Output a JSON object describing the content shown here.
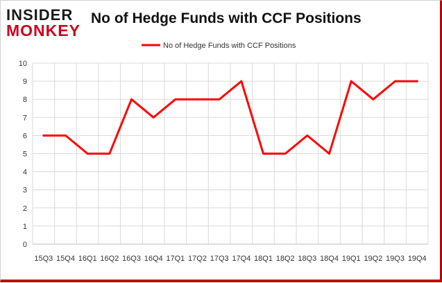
{
  "brand": {
    "line1": "INSIDER",
    "line2": "MONKEY"
  },
  "chart_data": {
    "type": "line",
    "title": "No of Hedge Funds with CCF Positions",
    "categories": [
      "15Q3",
      "15Q4",
      "16Q1",
      "16Q2",
      "16Q3",
      "16Q4",
      "17Q1",
      "17Q2",
      "17Q3",
      "17Q4",
      "18Q1",
      "18Q2",
      "18Q3",
      "18Q4",
      "19Q1",
      "19Q2",
      "19Q3",
      "19Q4"
    ],
    "series": [
      {
        "name": "No of Hedge Funds with CCF Positions",
        "color": "#ff0000",
        "values": [
          6,
          6,
          5,
          5,
          8,
          7,
          8,
          8,
          8,
          9,
          5,
          5,
          6,
          5,
          9,
          8,
          9,
          9
        ]
      }
    ],
    "ylim": [
      0,
      10
    ],
    "yticks": [
      0,
      1,
      2,
      3,
      4,
      5,
      6,
      7,
      8,
      9,
      10
    ],
    "grid": true,
    "legend_position": "top-center",
    "xlabel": "",
    "ylabel": ""
  }
}
